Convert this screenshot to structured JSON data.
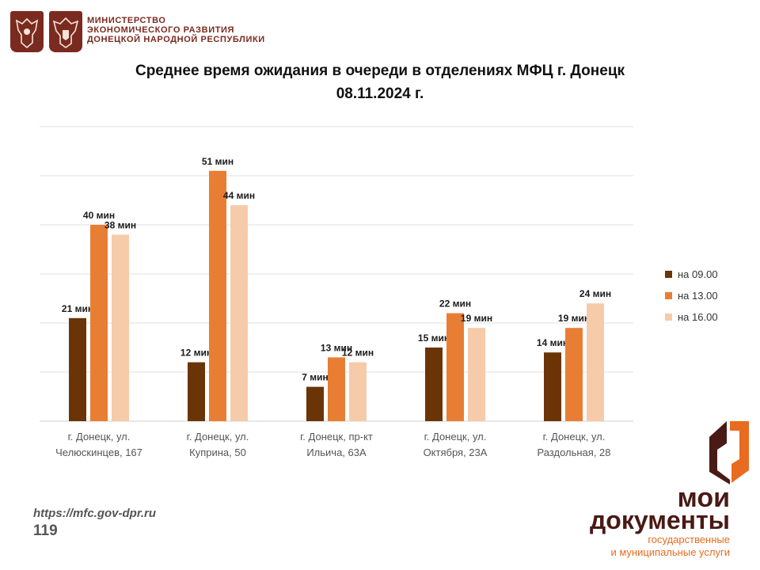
{
  "header": {
    "ministry_lines": [
      "МИНИСТЕРСТВО",
      "ЭКОНОМИЧЕСКОГО РАЗВИТИЯ",
      "ДОНЕЦКОЙ НАРОДНОЙ РЕСПУБЛИКИ"
    ],
    "emblem_icons": [
      "russia-coat-of-arms-icon",
      "dpr-coat-of-arms-icon"
    ]
  },
  "chart_data": {
    "type": "bar",
    "title_lines": [
      "Среднее время ожидания в очереди в отделениях МФЦ г. Донецк",
      "08.11.2024 г."
    ],
    "categories": [
      [
        "г. Донецк, ул.",
        "Челюскинцев, 167"
      ],
      [
        "г. Донецк, ул.",
        "Куприна, 50"
      ],
      [
        "г. Донецк, пр-кт",
        "Ильича, 63А"
      ],
      [
        "г. Донецк, ул.",
        "Октября, 23А"
      ],
      [
        "г. Донецк, ул.",
        "Раздольная, 28"
      ]
    ],
    "series": [
      {
        "name": "на 09.00",
        "color": "#6b3406",
        "values": [
          21,
          12,
          7,
          15,
          14
        ]
      },
      {
        "name": "на 13.00",
        "color": "#e87e33",
        "values": [
          40,
          51,
          13,
          22,
          19
        ]
      },
      {
        "name": "на 16.00",
        "color": "#f6cba9",
        "values": [
          38,
          44,
          12,
          19,
          24
        ]
      }
    ],
    "value_suffix": " мин",
    "ylim": [
      0,
      60
    ],
    "grid": true,
    "legend_position": "right"
  },
  "footer": {
    "url": "https://mfc.gov-dpr.ru",
    "page_number": "119"
  },
  "brand": {
    "line1": "мои",
    "line2": "документы",
    "sub_lines": [
      "государственные",
      "и муниципальные услуги"
    ],
    "accent_color": "#e86b1f",
    "dark_color": "#4a1a14"
  }
}
